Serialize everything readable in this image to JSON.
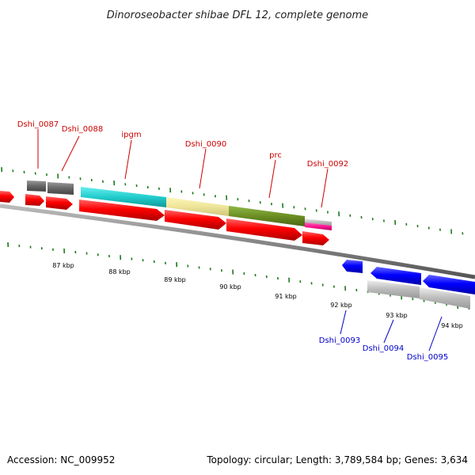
{
  "title": "Dinoroseobacter shibae DFL 12, complete genome",
  "accession": "Accession: NC_009952",
  "topology": "Topology: circular; Length: 3,789,584 bp; Genes: 3,634",
  "colors": {
    "forward_cds": "#ff0000",
    "reverse_cds": "#0000ff",
    "forward_label": "#cc0000",
    "reverse_label": "#0000cc",
    "tick": "#1a7a1a",
    "backbone": "#888888",
    "gray_dark": "#666666",
    "gray_light": "#bbbbbb",
    "cyan": "#22cccc",
    "khaki": "#eee599",
    "olive": "#6b8e23",
    "pink": "#ff1493"
  },
  "kbp_ticks": [
    "87 kbp",
    "88 kbp",
    "89 kbp",
    "90 kbp",
    "91 kbp",
    "92 kbp",
    "93 kbp",
    "94 kbp"
  ],
  "forward_labels": [
    {
      "name": "Dshi_0087"
    },
    {
      "name": "Dshi_0088"
    },
    {
      "name": "ipgm"
    },
    {
      "name": "Dshi_0090"
    },
    {
      "name": "prc"
    },
    {
      "name": "Dshi_0092"
    }
  ],
  "reverse_labels": [
    {
      "name": "Dshi_0093"
    },
    {
      "name": "Dshi_0094"
    },
    {
      "name": "Dshi_0095"
    }
  ]
}
